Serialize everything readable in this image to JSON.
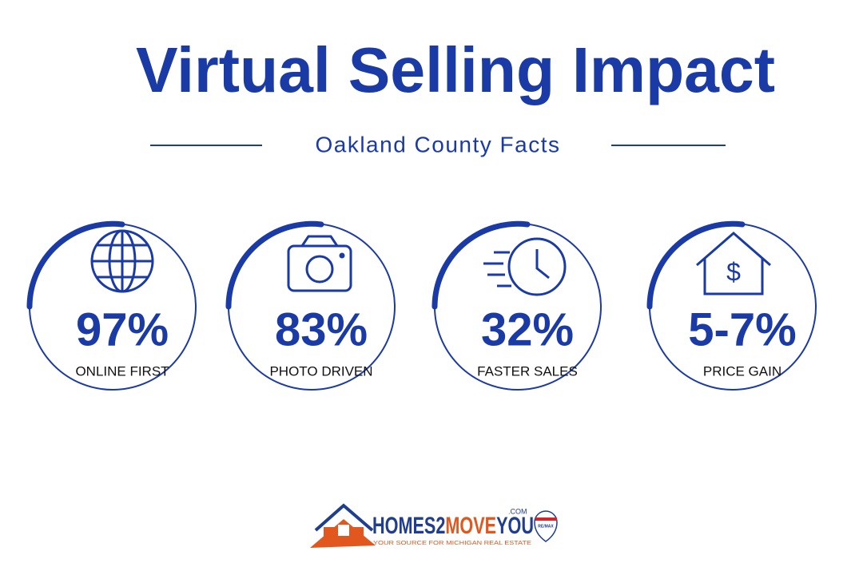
{
  "header": {
    "title": "Virtual Selling Impact",
    "subtitle": "Oakland County Facts"
  },
  "stats": [
    {
      "value": "97%",
      "label": "ONLINE FIRST"
    },
    {
      "value": "83%",
      "label": "PHOTO DRIVEN"
    },
    {
      "value": "32%",
      "label": "FASTER SALES"
    },
    {
      "value": "5-7%",
      "label": "PRICE GAIN"
    }
  ],
  "logo": {
    "name_parts": [
      "HOMES2",
      "MOVE",
      "YOU"
    ],
    "domain": ".COM",
    "tagline": "YOUR SOURCE FOR MICHIGAN REAL ESTATE",
    "badge": "RE/MAX"
  }
}
